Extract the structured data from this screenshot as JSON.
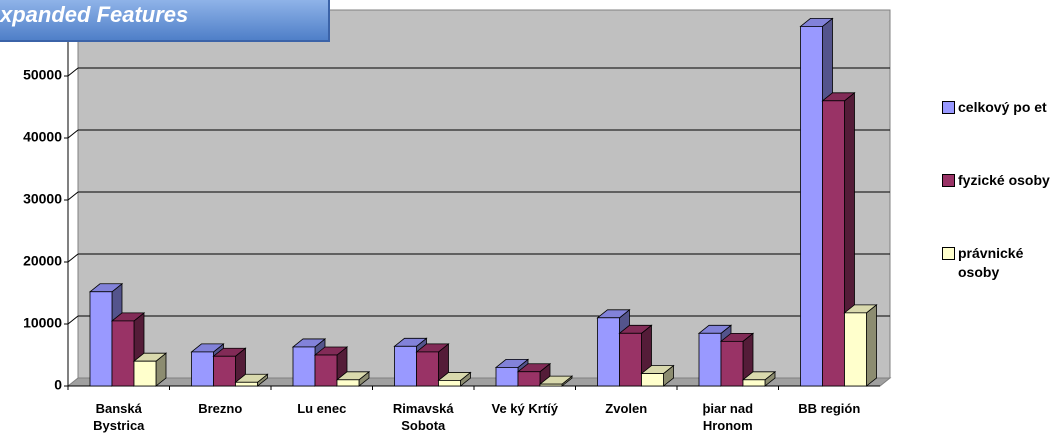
{
  "chart_data": {
    "type": "bar3d",
    "title": "xpanded Features",
    "categories": [
      "Banská Bystrica",
      "Brezno",
      "Lu enec",
      "Rimavská Sobota",
      "Ve ký Krtíý",
      "Zvolen",
      "þiar nad Hronom",
      "BB región"
    ],
    "series": [
      {
        "name": "celkový po et",
        "color": "#9999ff",
        "values": [
          15200,
          5500,
          6300,
          6400,
          3000,
          11000,
          8500,
          58000
        ]
      },
      {
        "name": "fyzické osoby",
        "color": "#993366",
        "values": [
          10500,
          4800,
          5000,
          5500,
          2300,
          8500,
          7200,
          46000
        ]
      },
      {
        "name": "právnické osoby",
        "color": "#ffffcc",
        "values": [
          4000,
          600,
          1000,
          900,
          300,
          2000,
          1000,
          11800
        ]
      }
    ],
    "ylim": [
      0,
      60000
    ],
    "yticks": [
      0,
      10000,
      20000,
      30000,
      40000,
      50000
    ],
    "grid": true
  }
}
